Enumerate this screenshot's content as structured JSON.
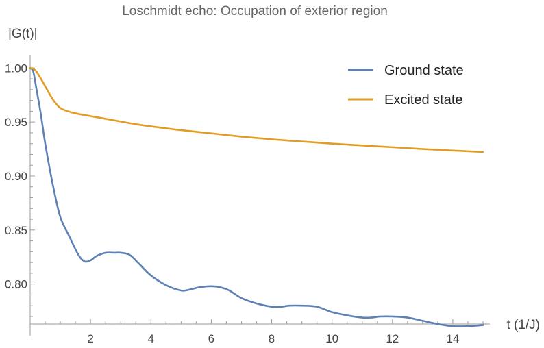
{
  "chart_data": {
    "type": "line",
    "title": "Loschmidt echo: Occupation of exterior region",
    "xlabel": "t (1/J)",
    "ylabel": "|G(t)|",
    "xlim": [
      0,
      15
    ],
    "ylim": [
      0.763,
      1.004
    ],
    "x_ticks": [
      2,
      4,
      6,
      8,
      10,
      12,
      14
    ],
    "y_ticks": [
      1.0,
      0.95,
      0.9,
      0.85,
      0.8
    ],
    "x_tick_labels": [
      "2",
      "4",
      "6",
      "8",
      "10",
      "12",
      "14"
    ],
    "y_tick_labels": [
      "1.00",
      "0.95",
      "0.90",
      "0.85",
      "0.80"
    ],
    "grid": false,
    "legend_position": "top-right",
    "series": [
      {
        "name": "Ground state",
        "color": "#5E81B5",
        "x": [
          0,
          0.1,
          0.2,
          0.35,
          0.5,
          0.75,
          1.0,
          1.3,
          1.6,
          1.8,
          2.0,
          2.2,
          2.5,
          2.8,
          3.0,
          3.3,
          3.6,
          4.0,
          4.5,
          5.0,
          5.3,
          5.6,
          6.0,
          6.3,
          6.6,
          7.0,
          7.5,
          8.0,
          8.3,
          8.6,
          9.0,
          9.5,
          10.0,
          10.5,
          11.0,
          11.3,
          11.6,
          12.0,
          12.5,
          13.0,
          13.5,
          14.0,
          14.5,
          15.0
        ],
        "values": [
          1.0,
          0.997,
          0.982,
          0.958,
          0.93,
          0.892,
          0.862,
          0.844,
          0.827,
          0.821,
          0.822,
          0.826,
          0.829,
          0.829,
          0.829,
          0.827,
          0.819,
          0.808,
          0.799,
          0.794,
          0.795,
          0.797,
          0.798,
          0.797,
          0.794,
          0.787,
          0.782,
          0.779,
          0.779,
          0.78,
          0.78,
          0.779,
          0.774,
          0.771,
          0.769,
          0.769,
          0.77,
          0.77,
          0.769,
          0.766,
          0.763,
          0.761,
          0.761,
          0.762
        ]
      },
      {
        "name": "Excited state",
        "color": "#E19C24",
        "x": [
          0,
          0.1,
          0.2,
          0.4,
          0.6,
          0.8,
          1.0,
          1.3,
          1.6,
          2.0,
          2.5,
          3.0,
          3.5,
          4.0,
          4.5,
          5.0,
          6.0,
          7.0,
          8.0,
          9.0,
          10.0,
          11.0,
          12.0,
          13.0,
          14.0,
          15.0
        ],
        "values": [
          1.0,
          0.9995,
          0.997,
          0.988,
          0.978,
          0.969,
          0.963,
          0.9595,
          0.9575,
          0.9555,
          0.953,
          0.9505,
          0.948,
          0.946,
          0.9442,
          0.9425,
          0.9395,
          0.9365,
          0.934,
          0.932,
          0.93,
          0.9283,
          0.9267,
          0.925,
          0.9236,
          0.9222
        ]
      }
    ]
  }
}
